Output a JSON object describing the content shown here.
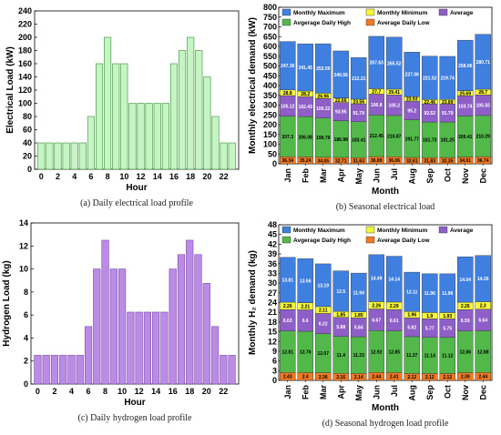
{
  "colors": {
    "green_bar": "#c5f5c2",
    "green_bar_stroke": "#3a8a3a",
    "purple_bar": "#bb8ce6",
    "purple_bar_stroke": "#7a4aa6",
    "max": "#3f7fe0",
    "min": "#f5f53a",
    "avg": "#8f5fc8",
    "high": "#52b84a",
    "low": "#f07a22"
  },
  "chart_data": [
    {
      "id": "a",
      "type": "bar",
      "caption": "(a) Daily electrical load profile",
      "xlabel": "Hour",
      "ylabel": "Electrical Load (kW)",
      "ylim": [
        0,
        240
      ],
      "yticks": [
        "0",
        "20",
        "40",
        "60",
        "80",
        "100",
        "120",
        "140",
        "160",
        "180",
        "200",
        "220",
        "240"
      ],
      "xticks": [
        "0",
        "2",
        "4",
        "6",
        "8",
        "10",
        "12",
        "14",
        "16",
        "18",
        "20",
        "22"
      ],
      "x": [
        0,
        1,
        2,
        3,
        4,
        5,
        6,
        7,
        8,
        9,
        10,
        11,
        12,
        13,
        14,
        15,
        16,
        17,
        18,
        19,
        20,
        21,
        22,
        23
      ],
      "values": [
        40,
        40,
        40,
        40,
        40,
        40,
        80,
        160,
        200,
        160,
        160,
        100,
        100,
        100,
        100,
        100,
        160,
        180,
        200,
        180,
        140,
        80,
        40,
        40
      ]
    },
    {
      "id": "b",
      "type": "bar",
      "stacked": true,
      "caption": "(b) Seasonal electrical load",
      "xlabel": "Month",
      "ylabel": "Monthly electrical demand (kW)",
      "ylim": [
        0,
        800
      ],
      "yticks": [
        "0",
        "50",
        "100",
        "150",
        "200",
        "250",
        "300",
        "350",
        "400",
        "450",
        "500",
        "550",
        "600",
        "650",
        "700",
        "750",
        "800"
      ],
      "categories": [
        "Jan",
        "Feb",
        "Mar",
        "Apr",
        "May",
        "Jun",
        "Jul",
        "Aug",
        "Sep",
        "Oct",
        "Nov",
        "Dec"
      ],
      "legend": [
        "Monthly Maximum",
        "Monthly Minimum",
        "Average",
        "Avgerage Daily High",
        "Average Daily Low"
      ],
      "series": [
        {
          "name": "Average Daily Low",
          "values": [
            36.34,
            35.24,
            34.05,
            32.71,
            31.63,
            36.89,
            36.06,
            32.61,
            31.83,
            32.35,
            34.91,
            36.74
          ],
          "labels": [
            "36.34",
            "35.24",
            "34.05",
            "32.71",
            "31.63",
            "36.89",
            "36.06",
            "32.61",
            "31.83",
            "32.35",
            "34.91",
            "36.74"
          ]
        },
        {
          "name": "Avgerage Daily High",
          "values": [
            207.3,
            206.08,
            199.79,
            186.98,
            183.41,
            212.45,
            210.87,
            191.77,
            181.73,
            181.25,
            209.41,
            210.29
          ],
          "labels": [
            "207.3",
            "206.08",
            "199.79",
            "186.98",
            "183.41",
            "212.45",
            "210.87",
            "191.77",
            "181.73",
            "181.25",
            "209.41",
            "210.29"
          ]
        },
        {
          "name": "Average",
          "values": [
            105.12,
            102.43,
            100.22,
            93.95,
            91.79,
            106.8,
            105.2,
            95.2,
            92.52,
            91.79,
            103.74,
            105.55
          ],
          "labels": [
            "105.12",
            "102.43",
            "100.22",
            "93.95",
            "91.79",
            "106.8",
            "105.2",
            "95.2",
            "92.52",
            "91.79",
            "103.74",
            "105.55"
          ]
        },
        {
          "name": "Monthly Minimum",
          "values": [
            28.8,
            28.2,
            26.96,
            22.66,
            23.56,
            27.7,
            29.41,
            23.93,
            22.46,
            23.89,
            25.69,
            28.7
          ],
          "labels": [
            "28.8",
            "28.2",
            "26.96",
            "22.66",
            "23.56",
            "27.7",
            "29.41",
            "23.93",
            "22.46",
            "23.89",
            "25.69",
            "28.7"
          ]
        },
        {
          "name": "Monthly Maximum",
          "values": [
            247.36,
            241.45,
            252.59,
            240.56,
            212.21,
            267.63,
            265.52,
            227.06,
            221.52,
            219.74,
            258.06,
            280.71
          ],
          "labels": [
            "247.36",
            "241.45",
            "252.59",
            "240.56",
            "212.21",
            "267.63",
            "265.52",
            "227.06",
            "221.52",
            "219.74",
            "258.06",
            "280.71"
          ]
        }
      ]
    },
    {
      "id": "c",
      "type": "bar",
      "caption": "(c) Daily hydrogen load profile",
      "xlabel": "Hour",
      "ylabel": "Hydrogen Load (kg)",
      "ylim": [
        0,
        14
      ],
      "yticks": [
        "0",
        "2",
        "4",
        "6",
        "8",
        "10",
        "12",
        "14"
      ],
      "xticks": [
        "0",
        "2",
        "4",
        "6",
        "8",
        "10",
        "12",
        "14",
        "16",
        "18",
        "20",
        "22"
      ],
      "x": [
        0,
        1,
        2,
        3,
        4,
        5,
        6,
        7,
        8,
        9,
        10,
        11,
        12,
        13,
        14,
        15,
        16,
        17,
        18,
        19,
        20,
        21,
        22,
        23
      ],
      "values": [
        2.5,
        2.5,
        2.5,
        2.5,
        2.5,
        2.5,
        5,
        10,
        12.5,
        10,
        10,
        6.25,
        6.25,
        6.25,
        6.25,
        6.25,
        10,
        11.25,
        12.5,
        11.25,
        8.75,
        5,
        2.5,
        2.5
      ]
    },
    {
      "id": "d",
      "type": "bar",
      "stacked": true,
      "caption": "(d) Seasonal hydrogen load profile",
      "xlabel": "Month",
      "ylabel": "Monthly H₂ demand (kg)",
      "ylim": [
        0,
        48
      ],
      "yticks": [
        "0",
        "3",
        "6",
        "9",
        "12",
        "15",
        "18",
        "21",
        "24",
        "27",
        "30",
        "33",
        "36",
        "39",
        "42",
        "45",
        "48"
      ],
      "categories": [
        "Jan",
        "Feb",
        "Mar",
        "Apr",
        "May",
        "Jun",
        "Jul",
        "Aug",
        "Sep",
        "Oct",
        "Nov",
        "Dec"
      ],
      "legend": [
        "Monthly Maximum",
        "Monthly Minimum",
        "Average",
        "Avgerage Daily High",
        "Average Daily Low"
      ],
      "series": [
        {
          "name": "Average Daily Low",
          "values": [
            2.43,
            2.4,
            2.36,
            2.16,
            2.14,
            2.44,
            2.41,
            2.12,
            2.12,
            2.12,
            2.39,
            2.44
          ],
          "labels": [
            "2.43",
            "2.4",
            "2.36",
            "2.16",
            "2.14",
            "2.44",
            "2.41",
            "2.12",
            "2.12",
            "2.12",
            "2.39",
            "2.44"
          ]
        },
        {
          "name": "Avgerage Daily High",
          "values": [
            12.81,
            12.76,
            12.07,
            11.4,
            11.33,
            12.92,
            12.85,
            11.37,
            11.14,
            11.12,
            12.86,
            12.88
          ],
          "labels": [
            "12.81",
            "12.76",
            "12.07",
            "11.4",
            "11.33",
            "12.92",
            "12.85",
            "11.37",
            "11.14",
            "11.12",
            "12.86",
            "12.88"
          ]
        },
        {
          "name": "Average",
          "values": [
            6.63,
            6.6,
            6.22,
            5.88,
            5.84,
            6.67,
            6.61,
            5.82,
            5.77,
            5.75,
            6.59,
            6.64
          ],
          "labels": [
            "6.63",
            "6.6",
            "6.22",
            "5.88",
            "5.84",
            "6.67",
            "6.61",
            "5.82",
            "5.77",
            "5.75",
            "6.59",
            "6.64"
          ]
        },
        {
          "name": "Monthly Minimum",
          "values": [
            2.26,
            2.21,
            2.11,
            1.85,
            1.85,
            2.26,
            2.29,
            1.96,
            1.9,
            1.93,
            2.26,
            2.3
          ],
          "labels": [
            "2.26",
            "2.21",
            "2.11",
            "1.85",
            "1.85",
            "2.26",
            "2.29",
            "1.96",
            "1.9",
            "1.93",
            "2.26",
            "2.3"
          ]
        },
        {
          "name": "Monthly Maximum",
          "values": [
            13.81,
            13.56,
            13.19,
            12.5,
            11.94,
            14.49,
            14.14,
            12.11,
            11.96,
            11.96,
            14.04,
            14.26
          ],
          "labels": [
            "13.81",
            "13.56",
            "13.19",
            "12.5",
            "11.94",
            "14.49",
            "14.14",
            "12.11",
            "11.96",
            "11.96",
            "14.04",
            "14.26"
          ]
        }
      ]
    }
  ]
}
